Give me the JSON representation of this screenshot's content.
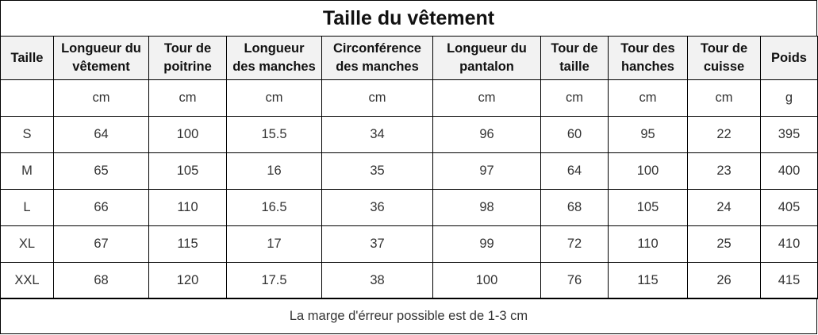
{
  "title": "Taille du vêtement",
  "headers": [
    [
      "Taille"
    ],
    [
      "Longueur du",
      "vêtement"
    ],
    [
      "Tour de",
      "poitrine"
    ],
    [
      "Longueur",
      "des manches"
    ],
    [
      "Circonférence",
      "des manches"
    ],
    [
      "Longueur du",
      "pantalon"
    ],
    [
      "Tour de",
      "taille"
    ],
    [
      "Tour des",
      "hanches"
    ],
    [
      "Tour de",
      "cuisse"
    ],
    [
      "Poids"
    ]
  ],
  "units": [
    "",
    "cm",
    "cm",
    "cm",
    "cm",
    "cm",
    "cm",
    "cm",
    "cm",
    "g"
  ],
  "rows": [
    [
      "S",
      "64",
      "100",
      "15.5",
      "34",
      "96",
      "60",
      "95",
      "22",
      "395"
    ],
    [
      "M",
      "65",
      "105",
      "16",
      "35",
      "97",
      "64",
      "100",
      "23",
      "400"
    ],
    [
      "L",
      "66",
      "110",
      "16.5",
      "36",
      "98",
      "68",
      "105",
      "24",
      "405"
    ],
    [
      "XL",
      "67",
      "115",
      "17",
      "37",
      "99",
      "72",
      "110",
      "25",
      "410"
    ],
    [
      "XXL",
      "68",
      "120",
      "17.5",
      "38",
      "100",
      "76",
      "115",
      "26",
      "415"
    ]
  ],
  "footnote": "La marge d'érreur possible est de 1-3 cm"
}
